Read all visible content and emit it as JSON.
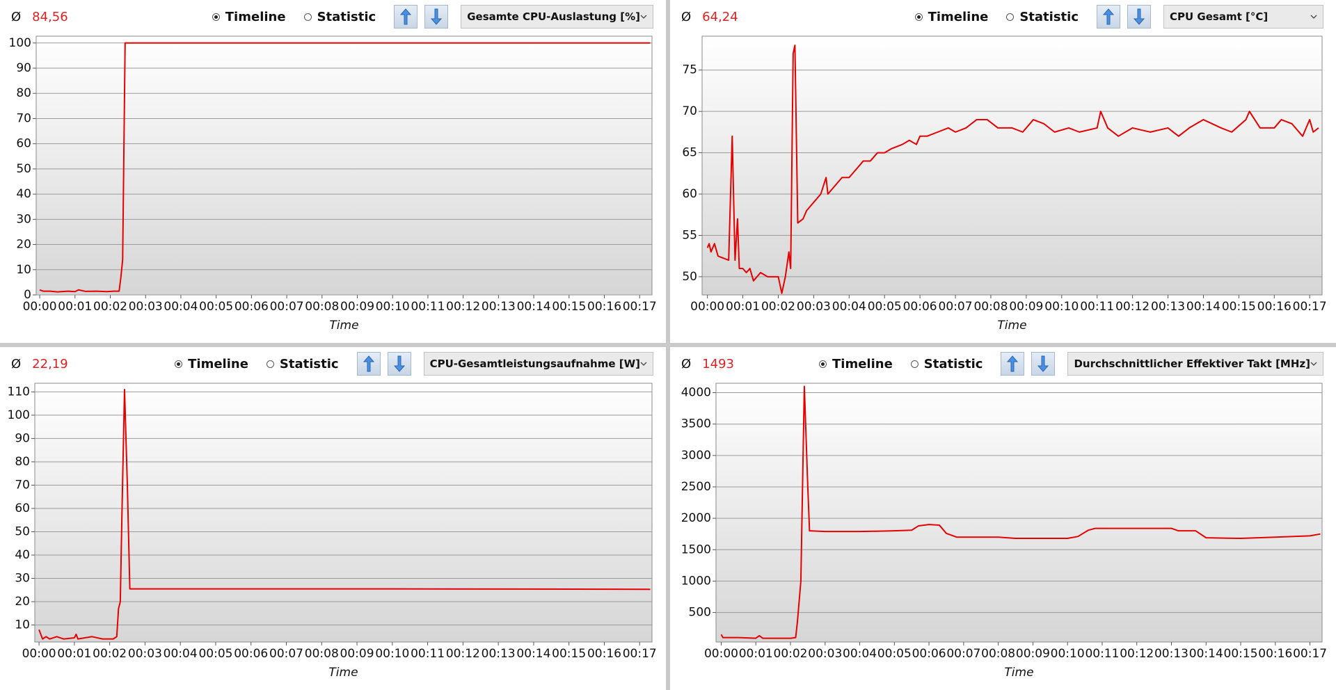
{
  "chart_data": [
    {
      "type": "line",
      "average_symbol": "Ø",
      "average": "84,56",
      "modes": [
        "Timeline",
        "Statistic"
      ],
      "selected_mode": 0,
      "sensor": "Gesamte CPU-Auslastung [%]",
      "xlabel": "Time",
      "color": "#e60000",
      "grid": true,
      "x": [
        0,
        0.1,
        0.3,
        0.5,
        0.8,
        1.0,
        1.1,
        1.3,
        1.6,
        1.9,
        2.1,
        2.25,
        2.3,
        2.35,
        2.42,
        3,
        6,
        9,
        12,
        15,
        17.3
      ],
      "values": [
        2,
        1.5,
        1.5,
        1.2,
        1.5,
        1.3,
        2,
        1.4,
        1.5,
        1.3,
        1.5,
        1.5,
        7,
        14,
        100,
        100,
        100,
        100,
        100,
        100,
        100
      ],
      "xlim": [
        -0.1,
        17.35
      ],
      "ylim": [
        0,
        102.7
      ],
      "yticks": [
        0,
        10,
        20,
        30,
        40,
        50,
        60,
        70,
        80,
        90,
        100
      ],
      "xticks": [
        {
          "value": 0,
          "label": "00:00"
        },
        {
          "value": 1,
          "label": "00:01"
        },
        {
          "value": 2,
          "label": "00:02"
        },
        {
          "value": 3,
          "label": "00:03"
        },
        {
          "value": 4,
          "label": "00:04"
        },
        {
          "value": 5,
          "label": "00:05"
        },
        {
          "value": 6,
          "label": "00:06"
        },
        {
          "value": 7,
          "label": "00:07"
        },
        {
          "value": 8,
          "label": "00:08"
        },
        {
          "value": 9,
          "label": "00:09"
        },
        {
          "value": 10,
          "label": "00:10"
        },
        {
          "value": 11,
          "label": "00:11"
        },
        {
          "value": 12,
          "label": "00:12"
        },
        {
          "value": 13,
          "label": "00:13"
        },
        {
          "value": 14,
          "label": "00:14"
        },
        {
          "value": 15,
          "label": "00:15"
        },
        {
          "value": 16,
          "label": "00:16"
        },
        {
          "value": 17,
          "label": "00:17"
        }
      ]
    },
    {
      "type": "line",
      "average_symbol": "Ø",
      "average": "64,24",
      "modes": [
        "Timeline",
        "Statistic"
      ],
      "selected_mode": 0,
      "sensor": "CPU Gesamt [°C]",
      "xlabel": "Time",
      "color": "#e60000",
      "grid": true,
      "x": [
        0,
        0.05,
        0.1,
        0.2,
        0.3,
        0.6,
        0.7,
        0.78,
        0.85,
        0.9,
        1.0,
        1.1,
        1.2,
        1.3,
        1.5,
        1.7,
        2.0,
        2.1,
        2.2,
        2.3,
        2.35,
        2.42,
        2.47,
        2.55,
        2.7,
        2.8,
        3.0,
        3.2,
        3.35,
        3.4,
        3.6,
        3.8,
        4.0,
        4.2,
        4.4,
        4.6,
        4.8,
        5.0,
        5.2,
        5.5,
        5.7,
        5.9,
        6.0,
        6.2,
        6.5,
        6.8,
        7.0,
        7.3,
        7.6,
        7.9,
        8.2,
        8.6,
        8.9,
        9.2,
        9.5,
        9.8,
        10.2,
        10.5,
        11.0,
        11.1,
        11.3,
        11.6,
        12.0,
        12.5,
        13.0,
        13.3,
        13.6,
        14.0,
        14.5,
        14.8,
        15.2,
        15.3,
        15.6,
        16.0,
        16.2,
        16.5,
        16.8,
        17.0,
        17.1,
        17.25
      ],
      "values": [
        53.5,
        54,
        53,
        54,
        52.5,
        52,
        67,
        52,
        57,
        51,
        51,
        50.5,
        51,
        49.5,
        50.5,
        50,
        50,
        48,
        50,
        53,
        51,
        77,
        78,
        56.5,
        57,
        58,
        59,
        60,
        62,
        60,
        61,
        62,
        62,
        63,
        64,
        64,
        65,
        65,
        65.5,
        66,
        66.5,
        66,
        67,
        67,
        67.5,
        68,
        67.5,
        68,
        69,
        69,
        68,
        68,
        67.5,
        69,
        68.5,
        67.5,
        68,
        67.5,
        68,
        70,
        68,
        67,
        68,
        67.5,
        68,
        67,
        68,
        69,
        68,
        67.5,
        69,
        70,
        68,
        68,
        69,
        68.5,
        67,
        69,
        67.5,
        68
      ],
      "xlim": [
        -0.15,
        17.35
      ],
      "ylim": [
        47.8,
        79.1
      ],
      "yticks": [
        50,
        55,
        60,
        65,
        70,
        75
      ],
      "xticks": [
        {
          "value": 0,
          "label": "00:00"
        },
        {
          "value": 1,
          "label": "00:01"
        },
        {
          "value": 2,
          "label": "00:02"
        },
        {
          "value": 3,
          "label": "00:03"
        },
        {
          "value": 4,
          "label": "00:04"
        },
        {
          "value": 5,
          "label": "00:05"
        },
        {
          "value": 6,
          "label": "00:06"
        },
        {
          "value": 7,
          "label": "00:07"
        },
        {
          "value": 8,
          "label": "00:08"
        },
        {
          "value": 9,
          "label": "00:09"
        },
        {
          "value": 10,
          "label": "00:10"
        },
        {
          "value": 11,
          "label": "00:11"
        },
        {
          "value": 12,
          "label": "00:12"
        },
        {
          "value": 13,
          "label": "00:13"
        },
        {
          "value": 14,
          "label": "00:14"
        },
        {
          "value": 15,
          "label": "00:15"
        },
        {
          "value": 16,
          "label": "00:16"
        },
        {
          "value": 17,
          "label": "00:17"
        }
      ]
    },
    {
      "type": "line",
      "average_symbol": "Ø",
      "average": "22,19",
      "modes": [
        "Timeline",
        "Statistic"
      ],
      "selected_mode": 0,
      "sensor": "CPU-Gesamtleistungsaufnahme [W]",
      "xlabel": "Time",
      "color": "#e60000",
      "grid": true,
      "x": [
        0,
        0.05,
        0.1,
        0.2,
        0.3,
        0.5,
        0.7,
        1.0,
        1.05,
        1.1,
        1.5,
        1.8,
        2.1,
        2.2,
        2.25,
        2.3,
        2.35,
        2.42,
        2.5,
        2.57,
        6,
        10,
        14,
        17.3
      ],
      "values": [
        8,
        6,
        4,
        5,
        4,
        5,
        4,
        4.5,
        6,
        4,
        5,
        4,
        4,
        5,
        17,
        20,
        60,
        111,
        70,
        25.5,
        25.5,
        25.5,
        25.4,
        25.3
      ],
      "xlim": [
        -0.12,
        17.35
      ],
      "ylim": [
        2.7,
        113.7
      ],
      "yticks": [
        10,
        20,
        30,
        40,
        50,
        60,
        70,
        80,
        90,
        100,
        110
      ],
      "xticks": [
        {
          "value": 0,
          "label": "00:00"
        },
        {
          "value": 1,
          "label": "00:01"
        },
        {
          "value": 2,
          "label": "00:02"
        },
        {
          "value": 3,
          "label": "00:03"
        },
        {
          "value": 4,
          "label": "00:04"
        },
        {
          "value": 5,
          "label": "00:05"
        },
        {
          "value": 6,
          "label": "00:06"
        },
        {
          "value": 7,
          "label": "00:07"
        },
        {
          "value": 8,
          "label": "00:08"
        },
        {
          "value": 9,
          "label": "00:09"
        },
        {
          "value": 10,
          "label": "00:10"
        },
        {
          "value": 11,
          "label": "00:11"
        },
        {
          "value": 12,
          "label": "00:12"
        },
        {
          "value": 13,
          "label": "00:13"
        },
        {
          "value": 14,
          "label": "00:14"
        },
        {
          "value": 15,
          "label": "00:15"
        },
        {
          "value": 16,
          "label": "00:16"
        },
        {
          "value": 17,
          "label": "00:17"
        }
      ]
    },
    {
      "type": "line",
      "average_symbol": "Ø",
      "average": "1493",
      "modes": [
        "Timeline",
        "Statistic"
      ],
      "selected_mode": 0,
      "sensor": "Durchschnittlicher Effektiver Takt [MHz]",
      "xlabel": "Time",
      "color": "#e60000",
      "grid": true,
      "x": [
        0,
        0.05,
        0.5,
        1.0,
        1.1,
        1.2,
        2.0,
        2.15,
        2.2,
        2.3,
        2.4,
        2.5,
        2.55,
        3.0,
        4.0,
        5.0,
        5.5,
        5.7,
        6.0,
        6.3,
        6.5,
        6.8,
        8.0,
        8.5,
        10.0,
        10.3,
        10.6,
        10.8,
        13.0,
        13.2,
        13.7,
        14.0,
        15.0,
        16.0,
        17.0,
        17.3
      ],
      "values": [
        150,
        100,
        100,
        90,
        130,
        90,
        90,
        100,
        350,
        1000,
        4100,
        2500,
        1800,
        1790,
        1790,
        1800,
        1810,
        1880,
        1900,
        1890,
        1760,
        1700,
        1700,
        1680,
        1680,
        1710,
        1810,
        1840,
        1840,
        1800,
        1800,
        1690,
        1680,
        1700,
        1720,
        1750
      ],
      "xlim": [
        -0.15,
        17.35
      ],
      "ylim": [
        30,
        4150
      ],
      "yticks": [
        500,
        1000,
        1500,
        2000,
        2500,
        3000,
        3500,
        4000
      ],
      "xticks": [
        {
          "value": 0,
          "label": "00:00"
        },
        {
          "value": 1,
          "label": "00:01"
        },
        {
          "value": 2,
          "label": "00:02"
        },
        {
          "value": 3,
          "label": "00:03"
        },
        {
          "value": 4,
          "label": "00:04"
        },
        {
          "value": 5,
          "label": "00:05"
        },
        {
          "value": 6,
          "label": "00:06"
        },
        {
          "value": 7,
          "label": "00:07"
        },
        {
          "value": 8,
          "label": "00:08"
        },
        {
          "value": 9,
          "label": "00:09"
        },
        {
          "value": 10,
          "label": "00:10"
        },
        {
          "value": 11,
          "label": "00:11"
        },
        {
          "value": 12,
          "label": "00:12"
        },
        {
          "value": 13,
          "label": "00:13"
        },
        {
          "value": 14,
          "label": "00:14"
        },
        {
          "value": 15,
          "label": "00:15"
        },
        {
          "value": 16,
          "label": "00:16"
        },
        {
          "value": 17,
          "label": "00:17"
        }
      ]
    }
  ]
}
